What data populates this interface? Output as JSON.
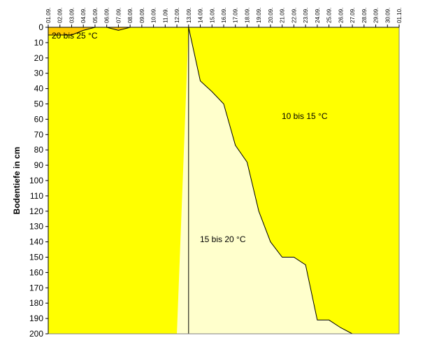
{
  "chart_data": {
    "type": "area",
    "title": "",
    "xlabel": "",
    "ylabel": "Bodentiefe in cm",
    "x_axis_position": "top",
    "y_axis_reversed": true,
    "ylim": [
      0,
      200
    ],
    "y_ticks": [
      0,
      10,
      20,
      30,
      40,
      50,
      60,
      70,
      80,
      90,
      100,
      110,
      120,
      130,
      140,
      150,
      160,
      170,
      180,
      190,
      200
    ],
    "categories": [
      "01.09.",
      "02.09.",
      "03.09.",
      "04.09.",
      "05.09.",
      "06.09.",
      "07.09.",
      "08.09.",
      "09.09.",
      "10.09.",
      "11.09.",
      "12.09.",
      "13.09.",
      "14.09.",
      "15.09.",
      "16.09.",
      "17.09.",
      "18.09.",
      "19.09.",
      "20.09.",
      "21.09.",
      "22.09.",
      "23.09.",
      "24.09.",
      "25.09.",
      "26.09.",
      "27.09.",
      "28.09.",
      "29.09.",
      "30.09.",
      "01.10."
    ],
    "grid": false,
    "colors": {
      "zone_10_15": "#ffffcc",
      "zone_15_20": "#ffff00",
      "zone_20_25": "#ffcc00",
      "boundary": "#000000"
    },
    "zones": [
      {
        "label": "20 bis 25 °C",
        "depth_bottom": [
          5,
          5,
          5,
          2,
          0,
          0,
          2,
          0,
          0,
          0,
          0,
          0,
          0,
          0,
          0,
          0,
          0,
          0,
          0,
          0,
          0,
          0,
          0,
          0,
          0,
          0,
          0,
          0,
          0,
          0,
          0
        ]
      },
      {
        "label": "15 bis 20 °C",
        "depth_bottom": [
          200,
          200,
          200,
          200,
          200,
          200,
          200,
          200,
          200,
          200,
          200,
          200,
          0,
          35,
          42,
          50,
          77,
          88,
          120,
          140,
          150,
          150,
          155,
          191,
          191,
          196,
          200,
          200,
          200,
          200,
          200
        ]
      },
      {
        "label": "10 bis 15 °C",
        "depth_bottom": [
          200,
          200,
          200,
          200,
          200,
          200,
          200,
          200,
          200,
          200,
          200,
          200,
          200,
          200,
          200,
          200,
          200,
          200,
          200,
          200,
          200,
          200,
          200,
          200,
          200,
          200,
          200,
          200,
          200,
          200,
          200
        ]
      }
    ]
  }
}
